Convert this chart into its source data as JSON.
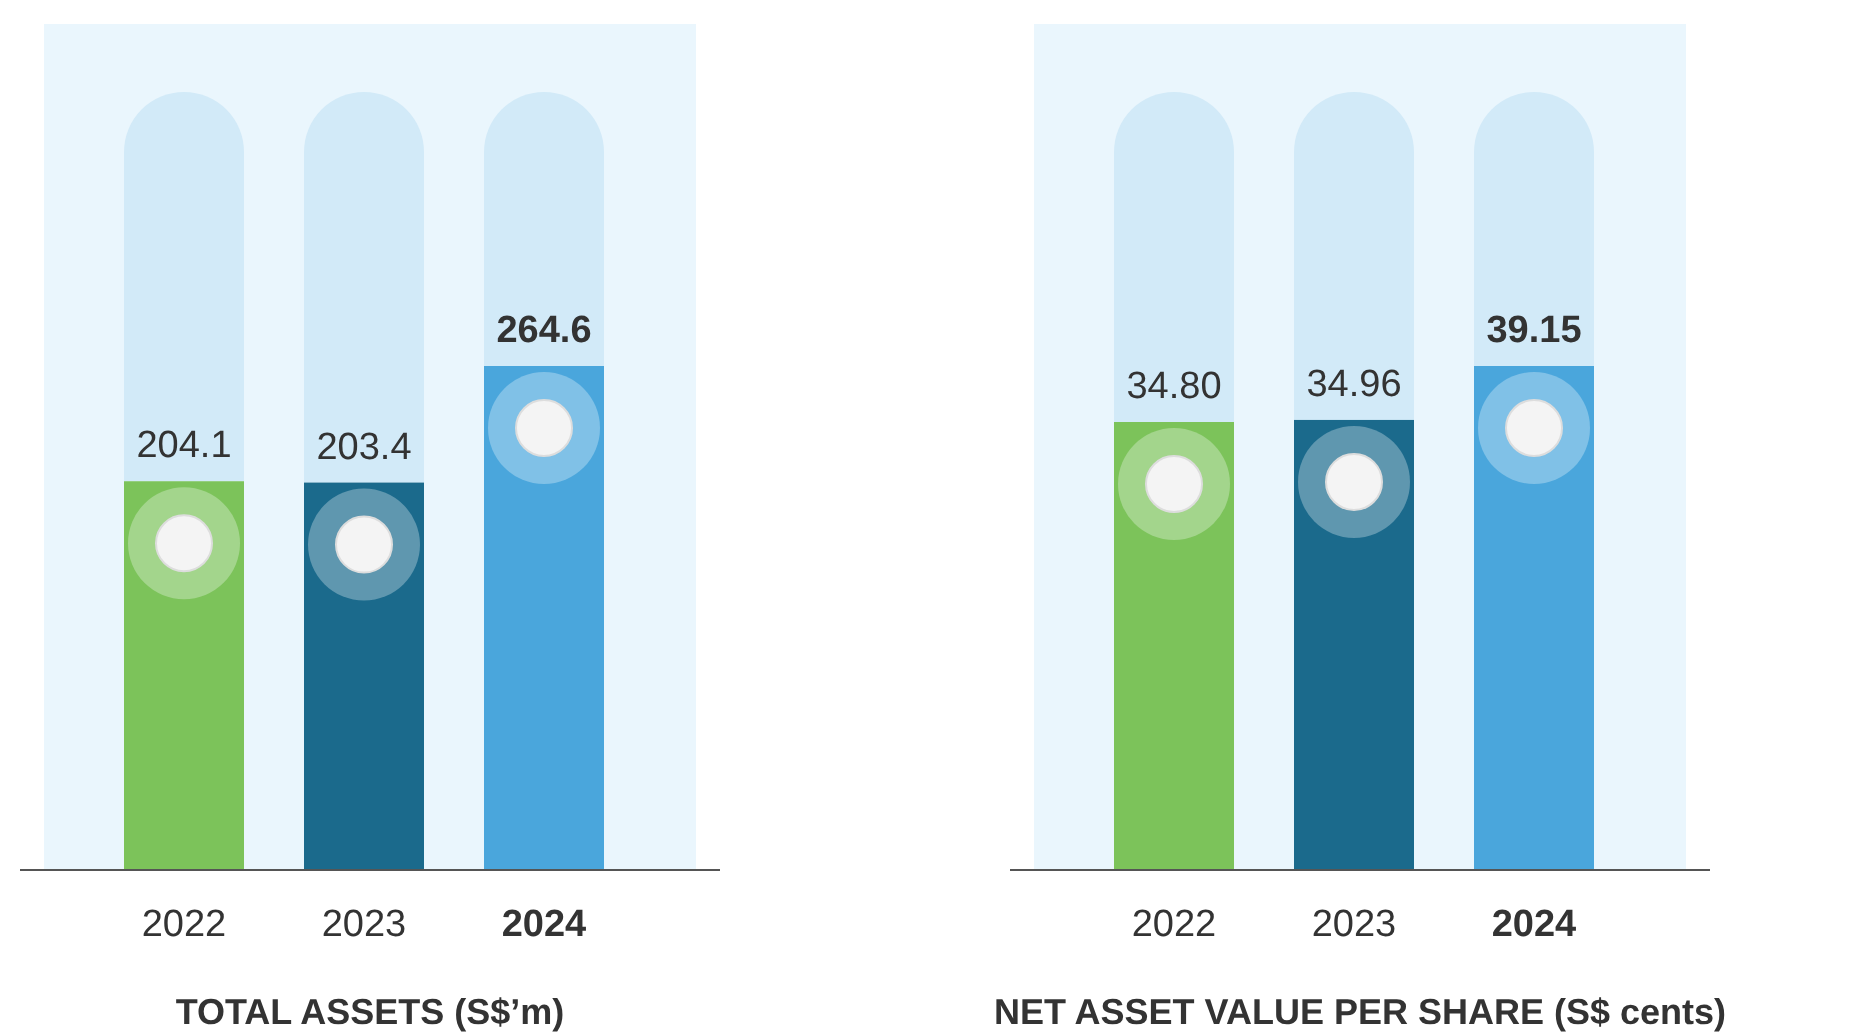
{
  "chart_data": [
    {
      "type": "bar",
      "title": "TOTAL ASSETS (S$’m)",
      "categories": [
        "2022",
        "2023",
        "2024"
      ],
      "values": [
        204.1,
        203.4,
        264.6
      ],
      "colors": [
        "#7cc35a",
        "#1b6a8c",
        "#4aa6dc"
      ],
      "data_labels": true
    },
    {
      "type": "bar",
      "title": "NET ASSET VALUE PER SHARE (S$ cents)",
      "categories": [
        "2022",
        "2023",
        "2024"
      ],
      "values": [
        34.8,
        34.96,
        39.15
      ],
      "colors": [
        "#7cc35a",
        "#1b6a8c",
        "#4aa6dc"
      ],
      "data_labels": true,
      "value_labels": [
        "34.80",
        "34.96",
        "39.15"
      ]
    }
  ]
}
